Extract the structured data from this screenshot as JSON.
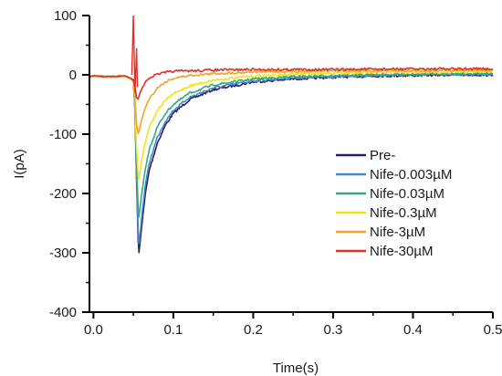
{
  "chart_data": {
    "type": "line",
    "title": "",
    "xlabel": "Time(s)",
    "ylabel": "I(pA)",
    "xlim": [
      -0.005,
      0.5
    ],
    "ylim": [
      -400,
      100
    ],
    "xticks": [
      0.0,
      0.1,
      0.2,
      0.3,
      0.4,
      0.5
    ],
    "xtick_labels": [
      "0.0",
      "0.1",
      "0.2",
      "0.3",
      "0.4",
      "0.5"
    ],
    "yticks": [
      -400,
      -300,
      -200,
      -100,
      0,
      100
    ],
    "ytick_labels": [
      "-400",
      "-300",
      "-200",
      "-100",
      "0",
      "100"
    ],
    "grid": false,
    "legend_position": "right-middle",
    "stimulus_artifact": {
      "x": 0.05,
      "y_top": 100,
      "y_bottom": -30
    },
    "series": [
      {
        "name": "Pre-",
        "color": "#2e1a6e",
        "x": [
          -0.005,
          0.0,
          0.02,
          0.04,
          0.05,
          0.052,
          0.054,
          0.056,
          0.057,
          0.06,
          0.065,
          0.07,
          0.08,
          0.09,
          0.1,
          0.12,
          0.15,
          0.2,
          0.25,
          0.3,
          0.35,
          0.4,
          0.45,
          0.5
        ],
        "y": [
          -3,
          -2,
          -3,
          -2,
          -10,
          -60,
          -180,
          -280,
          -300,
          -260,
          -200,
          -160,
          -115,
          -85,
          -65,
          -42,
          -25,
          -12,
          -7,
          -4,
          -2,
          -1,
          0,
          0
        ]
      },
      {
        "name": "Nife-0.003µM",
        "color": "#3e8cc8",
        "x": [
          -0.005,
          0.0,
          0.02,
          0.04,
          0.05,
          0.052,
          0.054,
          0.056,
          0.057,
          0.06,
          0.065,
          0.07,
          0.08,
          0.09,
          0.1,
          0.12,
          0.15,
          0.2,
          0.25,
          0.3,
          0.35,
          0.4,
          0.45,
          0.5
        ],
        "y": [
          -3,
          -2,
          -3,
          -2,
          -10,
          -60,
          -170,
          -265,
          -285,
          -245,
          -185,
          -148,
          -105,
          -78,
          -60,
          -38,
          -22,
          -10,
          -5,
          -3,
          -1,
          0,
          1,
          1
        ]
      },
      {
        "name": "Nife-0.03µM",
        "color": "#3aa87a",
        "x": [
          -0.005,
          0.0,
          0.02,
          0.04,
          0.05,
          0.052,
          0.054,
          0.056,
          0.057,
          0.06,
          0.065,
          0.07,
          0.08,
          0.09,
          0.1,
          0.12,
          0.15,
          0.2,
          0.25,
          0.3,
          0.35,
          0.4,
          0.45,
          0.5
        ],
        "y": [
          -3,
          -2,
          -3,
          -2,
          -10,
          -55,
          -150,
          -225,
          -240,
          -205,
          -158,
          -125,
          -88,
          -65,
          -50,
          -31,
          -17,
          -7,
          -3,
          -1,
          0,
          1,
          2,
          2
        ]
      },
      {
        "name": "Nife-0.3µM",
        "color": "#f2e21a",
        "x": [
          -0.005,
          0.0,
          0.02,
          0.04,
          0.05,
          0.052,
          0.054,
          0.056,
          0.057,
          0.06,
          0.065,
          0.07,
          0.08,
          0.09,
          0.1,
          0.12,
          0.15,
          0.2,
          0.25,
          0.3,
          0.35,
          0.4,
          0.45,
          0.5
        ],
        "y": [
          -3,
          -2,
          -3,
          -2,
          -10,
          -50,
          -125,
          -170,
          -175,
          -148,
          -112,
          -88,
          -60,
          -43,
          -32,
          -19,
          -9,
          -2,
          1,
          3,
          4,
          4,
          5,
          5
        ]
      },
      {
        "name": "Nife-3µM",
        "color": "#f2a22a",
        "x": [
          -0.005,
          0.0,
          0.02,
          0.04,
          0.05,
          0.052,
          0.054,
          0.056,
          0.057,
          0.06,
          0.065,
          0.07,
          0.08,
          0.09,
          0.1,
          0.12,
          0.15,
          0.2,
          0.25,
          0.3,
          0.35,
          0.4,
          0.45,
          0.5
        ],
        "y": [
          -3,
          -2,
          -3,
          -2,
          -10,
          -40,
          -85,
          -100,
          -95,
          -78,
          -55,
          -40,
          -22,
          -12,
          -6,
          -1,
          2,
          5,
          6,
          7,
          7,
          7,
          8,
          8
        ]
      },
      {
        "name": "Nife-30µM",
        "color": "#e0302a",
        "x": [
          -0.005,
          0.0,
          0.02,
          0.04,
          0.05,
          0.052,
          0.054,
          0.056,
          0.06,
          0.065,
          0.07,
          0.08,
          0.09,
          0.1,
          0.15,
          0.2,
          0.3,
          0.4,
          0.5
        ],
        "y": [
          -3,
          -2,
          -3,
          -2,
          -8,
          -22,
          -38,
          -40,
          -25,
          -12,
          -5,
          1,
          4,
          6,
          8,
          9,
          9,
          10,
          10
        ]
      }
    ]
  }
}
